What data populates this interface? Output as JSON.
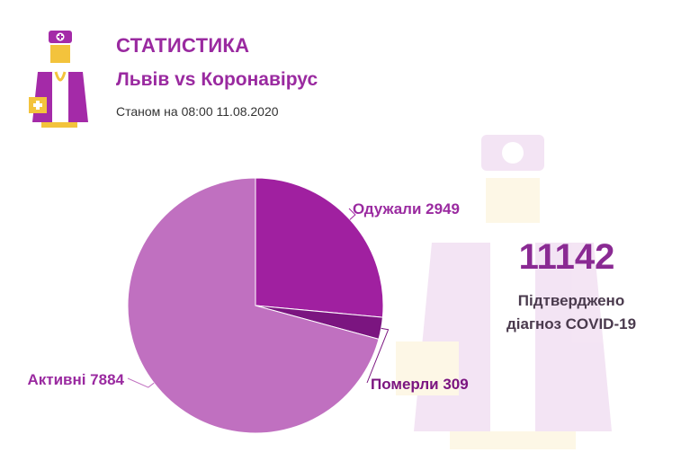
{
  "header": {
    "title": "СТАТИСТИКА",
    "subtitle": "Львів vs Коронавірус",
    "date": "Станом на 08:00 11.08.2020",
    "logo_icon": "doctor-icon"
  },
  "summary": {
    "total": "11142",
    "caption_line1": "Підтверджено",
    "caption_line2": "діагноз COVID-19"
  },
  "colors": {
    "accent": "#9a2aa0",
    "recovered": "#a020a0",
    "died": "#7b1580",
    "active": "#c070c0",
    "label": "#9a2aa0"
  },
  "chart_data": {
    "type": "pie",
    "slices": [
      {
        "label": "Одужали 2949",
        "value": 2949
      },
      {
        "label": "Померли 309",
        "value": 309
      },
      {
        "label": "Активні 7884",
        "value": 7884
      }
    ]
  }
}
